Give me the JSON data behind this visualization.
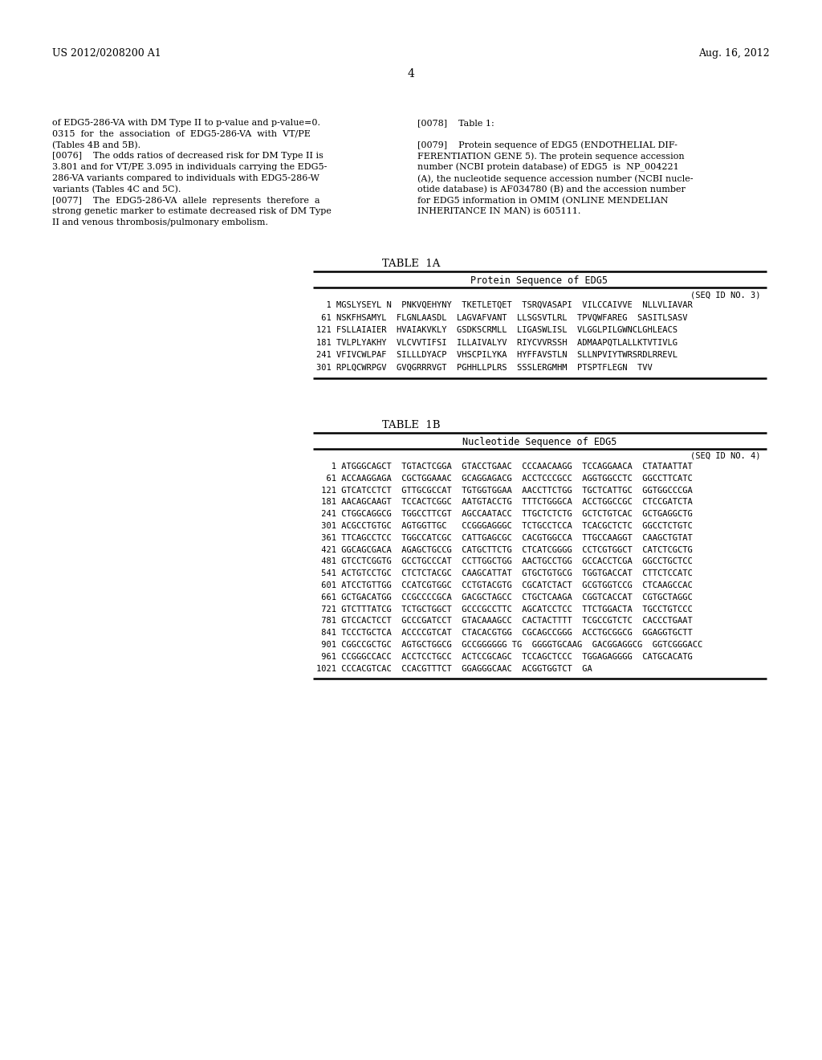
{
  "bg_color": "#ffffff",
  "header_left": "US 2012/0208200 A1",
  "header_right": "Aug. 16, 2012",
  "page_number": "4",
  "left_col_text": [
    "of EDG5-286-VA with DM Type II to p-value and p-value=0.",
    "0315  for  the  association  of  EDG5-286-VA  with  VT/PE",
    "(Tables 4B and 5B).",
    "[0076]    The odds ratios of decreased risk for DM Type II is",
    "3.801 and for VT/PE 3.095 in individuals carrying the EDG5-",
    "286-VA variants compared to individuals with EDG5-286-W",
    "variants (Tables 4C and 5C).",
    "[0077]    The  EDG5-286-VA  allele  represents  therefore  a",
    "strong genetic marker to estimate decreased risk of DM Type",
    "II and venous thrombosis/pulmonary embolism."
  ],
  "right_col_text": [
    "[0078]    Table 1:",
    "",
    "[0079]    Protein sequence of EDG5 (ENDOTHELIAL DIF-",
    "FERENTIATION GENE 5). The protein sequence accession",
    "number (NCBI protein database) of EDG5  is  NP_004221",
    "(A), the nucleotide sequence accession number (NCBI nucle-",
    "otide database) is AF034780 (B) and the accession number",
    "for EDG5 information in OMIM (ONLINE MENDELIAN",
    "INHERITANCE IN MAN) is 605111."
  ],
  "table1a_title": "TABLE  1A",
  "table1a_subtitle": "Protein Sequence of EDG5",
  "table1a_seq_id": "(SEQ ID NO. 3)",
  "table1a_rows": [
    "  1 MGSLYSEYL N  PNKVQEHYNY  TKETLETQET  TSRQVASAPI  VILCCAIVVE  NLLVLIAVAR",
    " 61 NSKFHSAMYL  FLGNLAASDL  LAGVAFVANT  LLSGSVTLRL  TPVQWFAREG  SASITLSASV",
    "121 FSLLAIAIER  HVAIAKVKLY  GSDKSCRMLL  LIGASWLISL  VLGGLPILGWNCLGHLEACS",
    "181 TVLPLYAKHY  VLCVVTIFSI  ILLAIVALYV  RIYCVVRSSH  ADMAAPQTLALLKTVTIVLG",
    "241 VFIVCWLPAF  SILLLDYACP  VHSCPILYKA  HYFFAVSTLN  SLLNPVIYTWRSRDLRREVL",
    "301 RPLQCWRPGV  GVQGRRRVGT  PGHHLLPLRS  SSSLERGMHM  PTSPTFLEGN  TVV"
  ],
  "table1b_title": "TABLE  1B",
  "table1b_subtitle": "Nucleotide Sequence of EDG5",
  "table1b_seq_id": "(SEQ ID NO. 4)",
  "table1b_rows": [
    "   1 ATGGGCAGCT  TGTACTCGGA  GTACCTGAAC  CCCAACAAGG  TCCAGGAACA  CTATAATTAT",
    "  61 ACCAAGGAGA  CGCTGGAAAC  GCAGGAGACG  ACCTCCCGCC  AGGTGGCCTC  GGCCTTCATC",
    " 121 GTCATCCTCT  GTTGCGCCAT  TGTGGTGGAA  AACCTTCTGG  TGCTCATTGC  GGTGGCCCGA",
    " 181 AACAGCAAGT  TCCACTCGGC  AATGTACCTG  TTTCTGGGCA  ACCTGGCCGC  CTCCGATCTA",
    " 241 CTGGCAGGCG  TGGCCTTCGT  AGCCAATACC  TTGCTCTCTG  GCTCTGTCAC  GCTGAGGCTG",
    " 301 ACGCCTGTGC  AGTGGTTGC   CCGGGAGGGC  TCTGCCTCCA  TCACGCTCTC  GGCCTCTGTC",
    " 361 TTCAGCCTCC  TGGCCATCGC  CATTGAGCGC  CACGTGGCCA  TTGCCAAGGT  CAAGCTGTAT",
    " 421 GGCAGCGACA  AGAGCTGCCG  CATGCTTCTG  CTCATCGGGG  CCTCGTGGCT  CATCTCGCTG",
    " 481 GTCCTCGGTG  GCCTGCCCAT  CCTTGGCTGG  AACTGCCTGG  GCCACCTCGA  GGCCTGCTCC",
    " 541 ACTGTCCTGC  CTCTCTACGC  CAAGCATTAT  GTGCTGTGCG  TGGTGACCAT  CTTCTCCATC",
    " 601 ATCCTGTTGG  CCATCGTGGC  CCTGTACGTG  CGCATCTACT  GCGTGGTCCG  CTCAAGCCAC",
    " 661 GCTGACATGG  CCGCCCCGCA  GACGCTAGCC  CTGCTCAAGA  CGGTCACCAT  CGTGCTAGGC",
    " 721 GTCTTTATCG  TCTGCTGGCT  GCCCGCCTTC  AGCATCCTCC  TTCTGGACTA  TGCCTGTCCC",
    " 781 GTCCACTCCT  GCCCGATCCT  GTACAAAGCC  CACTACTTTT  TCGCCGTCTC  CACCCTGAAT",
    " 841 TCCCTGCTCA  ACCCCGTCAT  CTACACGTGG  CGCAGCCGGG  ACCTGCGGCG  GGAGGTGCTT",
    " 901 CGGCCGCTGC  AGTGCTGGCG  GCCGGGGGG TG  GGGGTGCAAG  GACGGAGGCG  GGTCGGGACC",
    " 961 CCGGGCCACC  ACCTCCTGCC  ACTCCGCAGC  TCCAGCTCCC  TGGAGAGGGG  CATGCACATG",
    "1021 CCCACGTCAC  CCACGTTTCT  GGAGGGCAAC  ACGGTGGTCT  GA"
  ]
}
